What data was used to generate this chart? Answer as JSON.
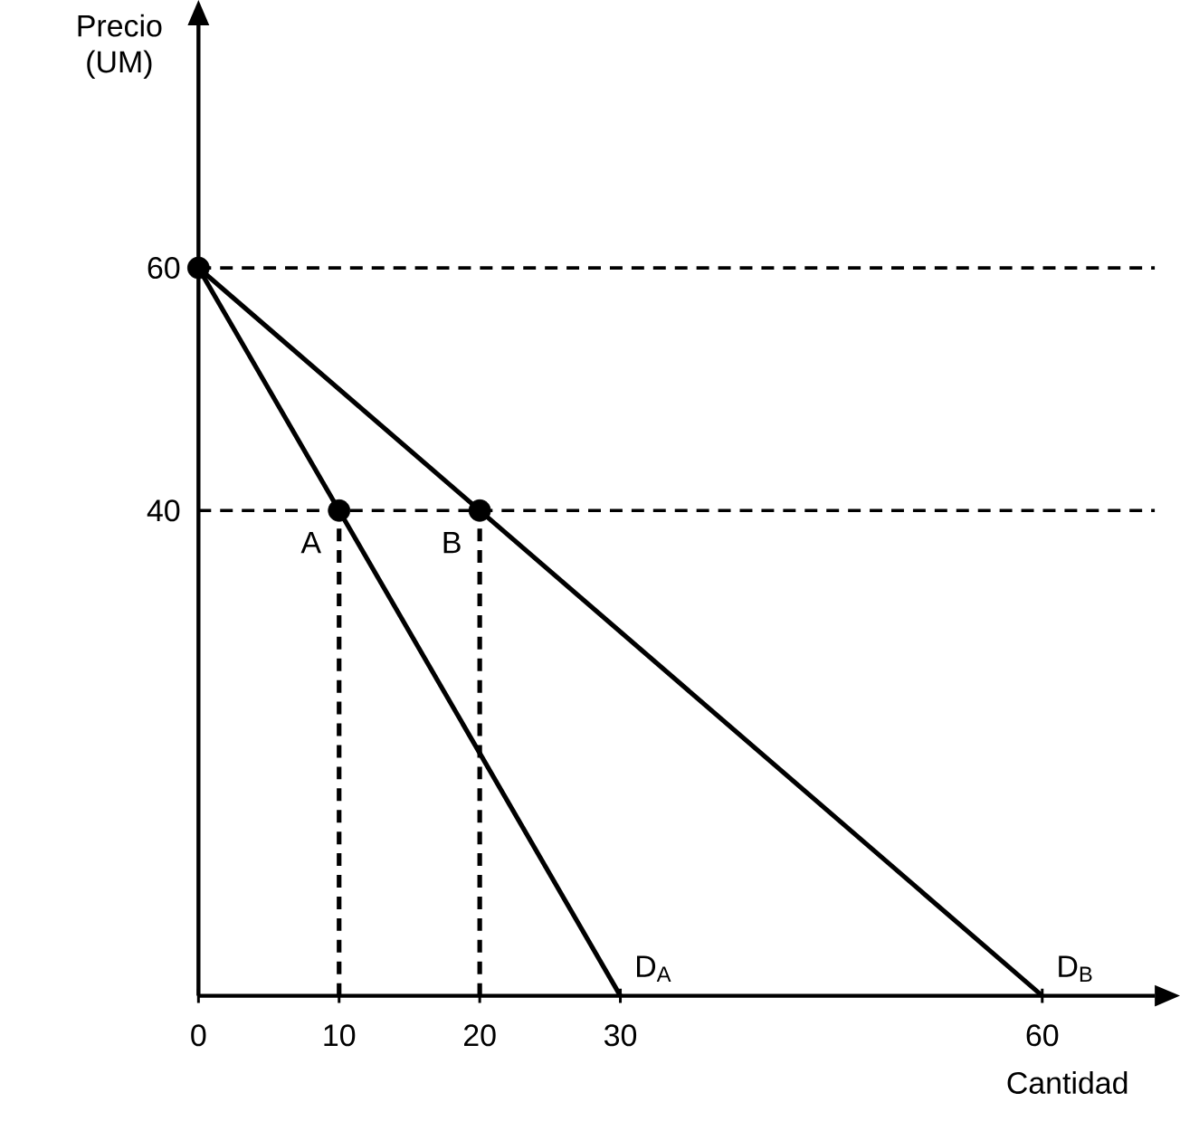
{
  "chart_data": {
    "type": "line",
    "xlabel": "Cantidad",
    "ylabel": "Precio (UM)",
    "xlim": [
      0,
      68
    ],
    "ylim": [
      0,
      80
    ],
    "xticks": [
      0,
      10,
      20,
      30,
      60
    ],
    "yticks": [
      40,
      60
    ],
    "series": [
      {
        "name": "D$_{A}$",
        "color": "#000000",
        "x": [
          0,
          30
        ],
        "values": [
          60,
          0
        ],
        "line_style": "solid",
        "marker": "none"
      },
      {
        "name": "D$_{B}$",
        "color": "#000000",
        "x": [
          0,
          60
        ],
        "values": [
          60,
          0
        ],
        "line_style": "solid",
        "marker": "none"
      },
      {
        "type": "line",
        "color": "#000000",
        "x": [
          10,
          10
        ],
        "values": [
          0,
          40
        ],
        "line_style": "dashed",
        "marker": "none"
      },
      {
        "type": "line",
        "color": "#000000",
        "x": [
          20,
          20
        ],
        "values": [
          0,
          40
        ],
        "line_style": "dashed",
        "marker": "none"
      },
      {
        "type": "scatter",
        "color": "#000000",
        "x": [
          0,
          10,
          20
        ],
        "values": [
          60,
          40,
          40
        ],
        "marker": "circle"
      }
    ],
    "ref_lines": [
      {
        "axis": "y",
        "value": 60,
        "line_style": "dashed",
        "color": "#000000"
      },
      {
        "axis": "y",
        "value": 40,
        "line_style": "dashed",
        "color": "#000000"
      }
    ],
    "annotations": [
      {
        "text": "A",
        "x": 10,
        "y": 40
      },
      {
        "text": "B",
        "x": 20,
        "y": 40
      }
    ]
  }
}
